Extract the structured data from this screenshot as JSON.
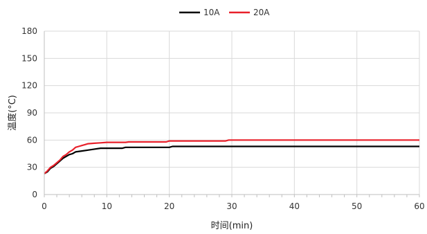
{
  "chart_data": {
    "type": "line",
    "title": "",
    "xlabel": "时间(min)",
    "ylabel": "温度(°C)",
    "xlim": [
      0,
      60
    ],
    "ylim": [
      0,
      180
    ],
    "x_ticks": [
      0,
      10,
      20,
      30,
      40,
      50,
      60
    ],
    "y_ticks": [
      0,
      30,
      60,
      90,
      120,
      150,
      180
    ],
    "grid": true,
    "legend_position": "top",
    "series": [
      {
        "name": "10A",
        "color": "#000000",
        "points": [
          [
            0,
            23
          ],
          [
            0.5,
            25
          ],
          [
            1,
            29
          ],
          [
            1.5,
            31
          ],
          [
            2,
            34
          ],
          [
            2.5,
            37
          ],
          [
            3,
            40
          ],
          [
            3.5,
            42
          ],
          [
            4,
            44
          ],
          [
            4.5,
            45
          ],
          [
            5,
            47
          ],
          [
            6,
            48
          ],
          [
            7,
            49
          ],
          [
            8,
            50
          ],
          [
            9,
            51
          ],
          [
            10,
            51
          ],
          [
            11,
            51
          ],
          [
            12.5,
            51
          ],
          [
            13,
            52
          ],
          [
            20,
            52
          ],
          [
            20.5,
            53
          ],
          [
            60,
            53
          ]
        ]
      },
      {
        "name": "20A",
        "color": "#e8202a",
        "points": [
          [
            0,
            23
          ],
          [
            0.5,
            26
          ],
          [
            1,
            30
          ],
          [
            1.5,
            32
          ],
          [
            2,
            35
          ],
          [
            2.5,
            38
          ],
          [
            3,
            42
          ],
          [
            3.5,
            44
          ],
          [
            4,
            47
          ],
          [
            4.5,
            49
          ],
          [
            5,
            52
          ],
          [
            5.5,
            53
          ],
          [
            6,
            54
          ],
          [
            6.5,
            55
          ],
          [
            7,
            56
          ],
          [
            8,
            56.5
          ],
          [
            9,
            57
          ],
          [
            10,
            57.5
          ],
          [
            13,
            57.5
          ],
          [
            13.5,
            58
          ],
          [
            19.5,
            58
          ],
          [
            20,
            59
          ],
          [
            29,
            59
          ],
          [
            29.5,
            60
          ],
          [
            60,
            60
          ]
        ]
      }
    ]
  }
}
